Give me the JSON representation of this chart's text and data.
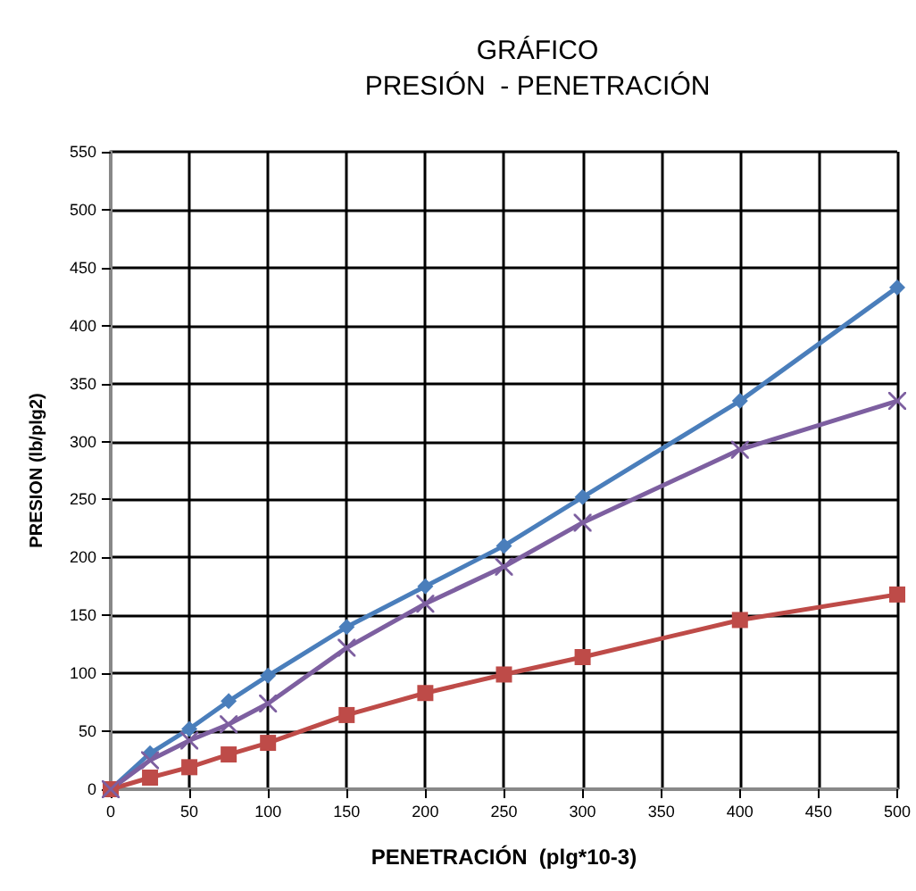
{
  "chart_data": {
    "type": "line",
    "title": "GRÁFICO",
    "subtitle": "PRESIÓN  - PENETRACIÓN",
    "xlabel": "PENETRACIÓN  (plg*10-3)",
    "ylabel": "PRESION (lb/plg2)",
    "x": [
      0,
      25,
      50,
      75,
      100,
      150,
      200,
      250,
      300,
      400,
      500
    ],
    "series": [
      {
        "color": "#4a7ebb",
        "marker": "diamond",
        "values": [
          0,
          31,
          52,
          76,
          98,
          140,
          175,
          210,
          252,
          335,
          433
        ]
      },
      {
        "color": "#be4b48",
        "marker": "square",
        "values": [
          0,
          10,
          19,
          30,
          40,
          64,
          83,
          99,
          114,
          146,
          168
        ]
      },
      {
        "color": "#7d5fa0",
        "marker": "cross",
        "values": [
          0,
          25,
          42,
          56,
          74,
          122,
          160,
          192,
          230,
          293,
          335
        ]
      }
    ],
    "xlim": [
      0,
      500
    ],
    "xticks": [
      0,
      50,
      100,
      150,
      200,
      250,
      300,
      350,
      400,
      450,
      500
    ],
    "ylim": [
      0,
      550
    ],
    "yticks": [
      0,
      50,
      100,
      150,
      200,
      250,
      300,
      350,
      400,
      450,
      500,
      550
    ],
    "grid": true,
    "line_style": "solid"
  }
}
